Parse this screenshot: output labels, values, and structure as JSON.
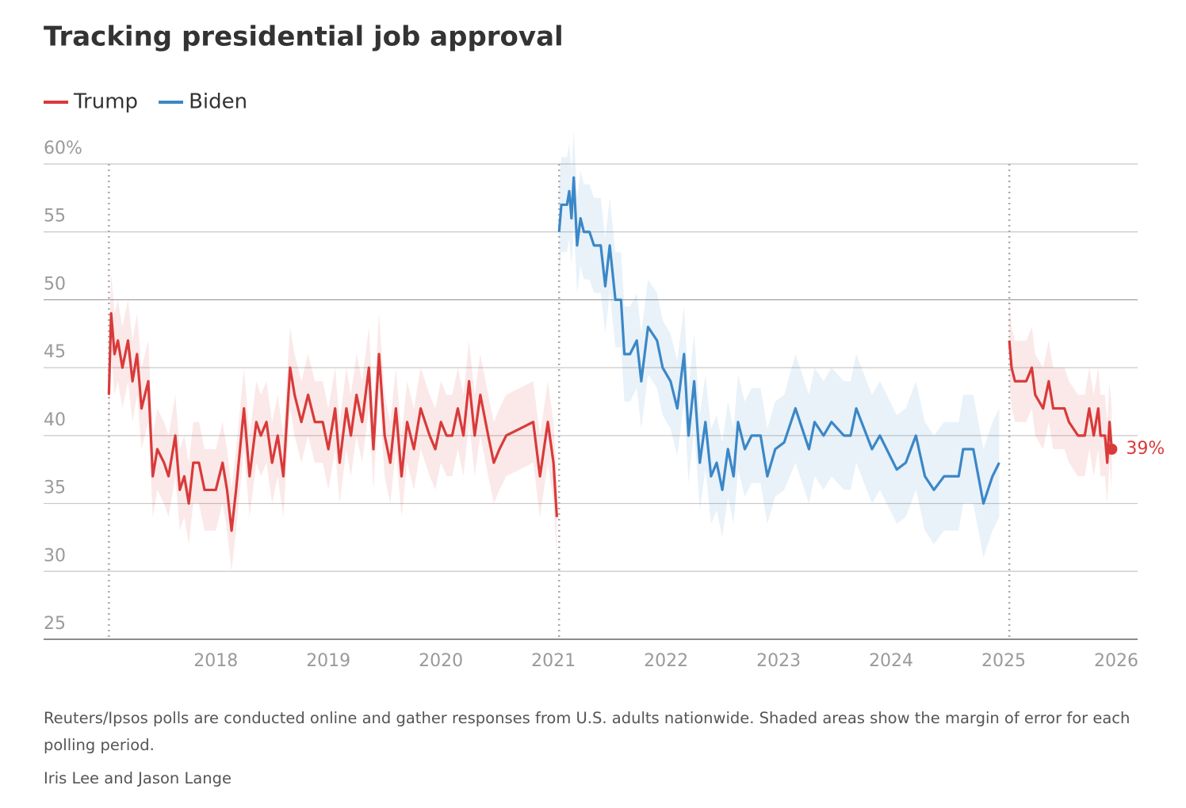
{
  "chart_data": {
    "type": "line",
    "title": "Tracking presidential job approval",
    "note": "Reuters/Ipsos polls are conducted online and gather responses from U.S. adults nationwide. Shaded areas show the margin of error for each polling period.",
    "credit": "Iris Lee and Jason Lange",
    "xlim": [
      2016.47,
      2026.19
    ],
    "xticks": [
      2018,
      2019,
      2020,
      2021,
      2022,
      2023,
      2024,
      2025,
      2026
    ],
    "ylim": [
      25,
      60
    ],
    "yticks": [
      25,
      30,
      35,
      40,
      45,
      50,
      55,
      {
        "value": 60,
        "label": "60%"
      }
    ],
    "grid": true,
    "vlines": [
      2017.05,
      2021.05,
      2025.05
    ],
    "series": [
      {
        "name": "Trump",
        "color": "#d93a3a",
        "x": [
          2017.05,
          2017.07,
          2017.1,
          2017.13,
          2017.17,
          2017.22,
          2017.26,
          2017.3,
          2017.34,
          2017.4,
          2017.44,
          2017.48,
          2017.54,
          2017.58,
          2017.64,
          2017.68,
          2017.72,
          2017.76,
          2017.8,
          2017.85,
          2017.9,
          2018.0,
          2018.06,
          2018.1,
          2018.14,
          2018.18,
          2018.25,
          2018.3,
          2018.36,
          2018.4,
          2018.45,
          2018.5,
          2018.55,
          2018.6,
          2018.66,
          2018.7,
          2018.76,
          2018.82,
          2018.88,
          2018.95,
          2019.0,
          2019.06,
          2019.1,
          2019.16,
          2019.2,
          2019.25,
          2019.3,
          2019.36,
          2019.4,
          2019.45,
          2019.5,
          2019.55,
          2019.6,
          2019.65,
          2019.7,
          2019.76,
          2019.82,
          2019.9,
          2019.95,
          2020.0,
          2020.05,
          2020.1,
          2020.15,
          2020.2,
          2020.25,
          2020.3,
          2020.35,
          2020.42,
          2020.47,
          2020.52,
          2020.58,
          2020.7,
          2020.82,
          2020.88,
          2020.95,
          2021.0,
          2021.03,
          null,
          2025.05,
          2025.07,
          2025.1,
          2025.2,
          2025.25,
          2025.28,
          2025.35,
          2025.4,
          2025.44,
          2025.54,
          2025.58,
          2025.66,
          2025.72,
          2025.76,
          2025.8,
          2025.84,
          2025.86,
          2025.9,
          2025.92,
          2025.94,
          2025.96
        ],
        "values": [
          43,
          49,
          46,
          47,
          45,
          47,
          44,
          46,
          42,
          44,
          37,
          39,
          38,
          37,
          40,
          36,
          37,
          35,
          38,
          38,
          36,
          36,
          38,
          36,
          33,
          36,
          42,
          37,
          41,
          40,
          41,
          38,
          40,
          37,
          45,
          43,
          41,
          43,
          41,
          41,
          39,
          42,
          38,
          42,
          40,
          43,
          41,
          45,
          39,
          46,
          40,
          38,
          42,
          37,
          41,
          39,
          42,
          40,
          39,
          41,
          40,
          40,
          42,
          40,
          44,
          40,
          43,
          40,
          38,
          39,
          40,
          40.5,
          41,
          37,
          41,
          38,
          34,
          null,
          47,
          45,
          44,
          44,
          45,
          43,
          42,
          44,
          42,
          42,
          41,
          40,
          40,
          42,
          40,
          42,
          40,
          40,
          38,
          41,
          39
        ],
        "margin": [
          3,
          3,
          3,
          3,
          3,
          3,
          3,
          3,
          3,
          3,
          3,
          3,
          3,
          3,
          3,
          3,
          3,
          3,
          3,
          3,
          3,
          3,
          3,
          3,
          3,
          3,
          3,
          3,
          3,
          3,
          3,
          3,
          3,
          3,
          3,
          3,
          3,
          3,
          3,
          3,
          3,
          3,
          3,
          3,
          3,
          3,
          3,
          3,
          3,
          3,
          3,
          3,
          3,
          3,
          3,
          3,
          3,
          3,
          3,
          3,
          3,
          3,
          3,
          3,
          3,
          3,
          3,
          3,
          3,
          3,
          3,
          3,
          3,
          3,
          3,
          3,
          3,
          null,
          3,
          3,
          3,
          3,
          3,
          3,
          3,
          3,
          3,
          3,
          3,
          3,
          3,
          3,
          3,
          3,
          3,
          3,
          3,
          3,
          3
        ]
      },
      {
        "name": "Biden",
        "color": "#3b87c7",
        "x": [
          2021.05,
          2021.07,
          2021.12,
          2021.14,
          2021.16,
          2021.18,
          2021.21,
          2021.24,
          2021.27,
          2021.32,
          2021.36,
          2021.42,
          2021.46,
          2021.5,
          2021.55,
          2021.6,
          2021.63,
          2021.68,
          2021.74,
          2021.78,
          2021.84,
          2021.92,
          2021.97,
          2022.04,
          2022.1,
          2022.16,
          2022.2,
          2022.25,
          2022.3,
          2022.35,
          2022.4,
          2022.45,
          2022.5,
          2022.55,
          2022.6,
          2022.64,
          2022.7,
          2022.76,
          2022.84,
          2022.9,
          2022.97,
          2023.05,
          2023.15,
          2023.27,
          2023.32,
          2023.4,
          2023.47,
          2023.58,
          2023.64,
          2023.69,
          2023.83,
          2023.9,
          2024.05,
          2024.13,
          2024.22,
          2024.3,
          2024.38,
          2024.47,
          2024.6,
          2024.64,
          2024.73,
          2024.82,
          2024.9,
          2024.96
        ],
        "values": [
          55,
          57,
          57,
          58,
          56,
          59,
          54,
          56,
          55,
          55,
          54,
          54,
          51,
          54,
          50,
          50,
          46,
          46,
          47,
          44,
          48,
          47,
          45,
          44,
          42,
          46,
          40,
          44,
          38,
          41,
          37,
          38,
          36,
          39,
          37,
          41,
          39,
          40,
          40,
          37,
          39,
          39.5,
          42,
          39,
          41,
          40,
          41,
          40,
          40,
          42,
          39,
          40,
          37.5,
          38,
          40,
          37,
          36,
          37,
          37,
          39,
          39,
          35,
          37,
          38
        ],
        "margin": [
          3.5,
          3.5,
          3.5,
          3.5,
          3.5,
          3.5,
          3.5,
          3.5,
          3.5,
          3.5,
          3.5,
          3.5,
          3.5,
          3.5,
          3.5,
          3.5,
          3.5,
          3.5,
          3.5,
          3.5,
          3.5,
          3.5,
          3.5,
          3.5,
          3.5,
          3.5,
          3.5,
          3.5,
          3.5,
          3.5,
          3.5,
          3.5,
          3.5,
          3.5,
          3.5,
          3.5,
          3.5,
          3.5,
          3.5,
          3.5,
          3.5,
          3.5,
          4,
          4,
          4,
          4,
          4,
          4,
          4,
          4,
          4,
          4,
          4,
          4,
          4,
          4,
          4,
          4,
          4,
          4,
          4,
          4,
          4,
          4
        ]
      }
    ],
    "annotations": [
      {
        "x": 2025.96,
        "value": 39,
        "label": "39%",
        "color": "#d93a3a"
      }
    ]
  }
}
